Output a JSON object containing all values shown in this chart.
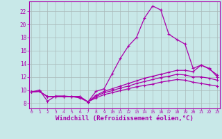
{
  "background_color": "#c8e8e8",
  "grid_color": "#aabbbb",
  "line_color": "#aa00aa",
  "xlabel": "Windchill (Refroidissement éolien,°C)",
  "xlabel_fontsize": 6.5,
  "yticks": [
    8,
    10,
    12,
    14,
    16,
    18,
    20,
    22
  ],
  "xticks": [
    0,
    1,
    2,
    3,
    4,
    5,
    6,
    7,
    8,
    9,
    10,
    11,
    12,
    13,
    14,
    15,
    16,
    17,
    18,
    19,
    20,
    21,
    22,
    23
  ],
  "xlim": [
    -0.3,
    23.3
  ],
  "ylim": [
    7.2,
    23.5
  ],
  "line1_x": [
    0,
    1,
    2,
    3,
    4,
    5,
    6,
    7,
    8,
    9,
    10,
    11,
    12,
    13,
    14,
    15,
    16,
    17,
    18,
    19,
    20,
    21,
    22,
    23
  ],
  "line1_y": [
    9.7,
    10.0,
    8.3,
    9.1,
    9.1,
    9.0,
    8.8,
    8.2,
    9.8,
    10.2,
    12.5,
    14.8,
    16.7,
    18.0,
    21.0,
    22.8,
    22.2,
    18.5,
    17.7,
    17.0,
    13.3,
    13.8,
    13.2,
    12.3
  ],
  "line2_x": [
    0,
    1,
    2,
    3,
    4,
    5,
    6,
    7,
    8,
    9,
    10,
    11,
    12,
    13,
    14,
    15,
    16,
    17,
    18,
    19,
    20,
    21,
    22,
    23
  ],
  "line2_y": [
    9.7,
    9.8,
    9.0,
    9.0,
    9.0,
    9.0,
    9.0,
    8.2,
    9.2,
    9.8,
    10.2,
    10.6,
    11.0,
    11.4,
    11.8,
    12.1,
    12.4,
    12.7,
    13.0,
    13.0,
    12.8,
    13.8,
    13.3,
    12.0
  ],
  "line3_x": [
    0,
    1,
    2,
    3,
    4,
    5,
    6,
    7,
    8,
    9,
    10,
    11,
    12,
    13,
    14,
    15,
    16,
    17,
    18,
    19,
    20,
    21,
    22,
    23
  ],
  "line3_y": [
    9.7,
    9.8,
    9.0,
    9.0,
    9.0,
    9.0,
    9.0,
    8.2,
    9.0,
    9.6,
    9.9,
    10.3,
    10.6,
    11.0,
    11.3,
    11.6,
    11.9,
    12.1,
    12.4,
    12.3,
    12.0,
    12.0,
    11.8,
    11.5
  ],
  "line4_x": [
    0,
    1,
    2,
    3,
    4,
    5,
    6,
    7,
    8,
    9,
    10,
    11,
    12,
    13,
    14,
    15,
    16,
    17,
    18,
    19,
    20,
    21,
    22,
    23
  ],
  "line4_y": [
    9.7,
    9.8,
    9.0,
    9.0,
    9.0,
    9.0,
    9.0,
    8.2,
    8.8,
    9.3,
    9.6,
    9.9,
    10.2,
    10.5,
    10.7,
    10.9,
    11.2,
    11.4,
    11.6,
    11.5,
    11.2,
    11.0,
    10.8,
    10.6
  ]
}
